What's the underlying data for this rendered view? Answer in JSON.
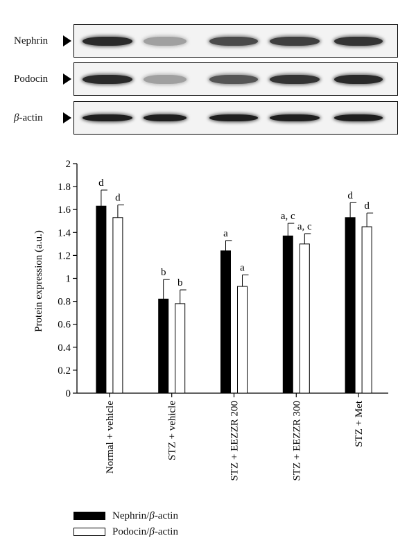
{
  "blot": {
    "rows": [
      {
        "label": "Nephrin",
        "intensities": [
          0.9,
          0.35,
          0.75,
          0.8,
          0.85
        ]
      },
      {
        "label": "Podocin",
        "intensities": [
          0.9,
          0.35,
          0.7,
          0.85,
          0.9
        ]
      },
      {
        "label_prefix": "β",
        "label_suffix": "-actin",
        "intensities": [
          0.95,
          0.95,
          0.95,
          0.95,
          0.95
        ]
      }
    ]
  },
  "chart_data": {
    "type": "bar",
    "ylabel": "Protein expression (a.u.)",
    "ylim": [
      0,
      2
    ],
    "yticks": [
      "0",
      "0.2",
      "0.4",
      "0.6",
      "0.8",
      "1",
      "1.2",
      "1.4",
      "1.6",
      "1.8",
      "2"
    ],
    "categories": [
      "Normal + vehicle",
      "STZ + vehicle",
      "STZ + EEZZR 200",
      "STZ + EEZZR 300",
      "STZ + Met"
    ],
    "series": [
      {
        "name": "Nephrin/β-actin",
        "name_prefix": "Nephrin/",
        "name_italic": "β",
        "name_suffix": "-actin",
        "color": "#000000",
        "values": [
          1.63,
          0.82,
          1.24,
          1.37,
          1.53
        ],
        "errors": [
          0.14,
          0.17,
          0.09,
          0.11,
          0.13
        ],
        "annotations": [
          "d",
          "b",
          "a",
          "a, c",
          "d"
        ]
      },
      {
        "name": "Podocin/β-actin",
        "name_prefix": "Podocin/",
        "name_italic": "β",
        "name_suffix": "-actin",
        "color": "#ffffff",
        "values": [
          1.53,
          0.78,
          0.93,
          1.3,
          1.45
        ],
        "errors": [
          0.11,
          0.12,
          0.1,
          0.09,
          0.12
        ],
        "annotations": [
          "d",
          "b",
          "a",
          "a, c",
          "d"
        ]
      }
    ],
    "legend_position": "bottom-left"
  }
}
